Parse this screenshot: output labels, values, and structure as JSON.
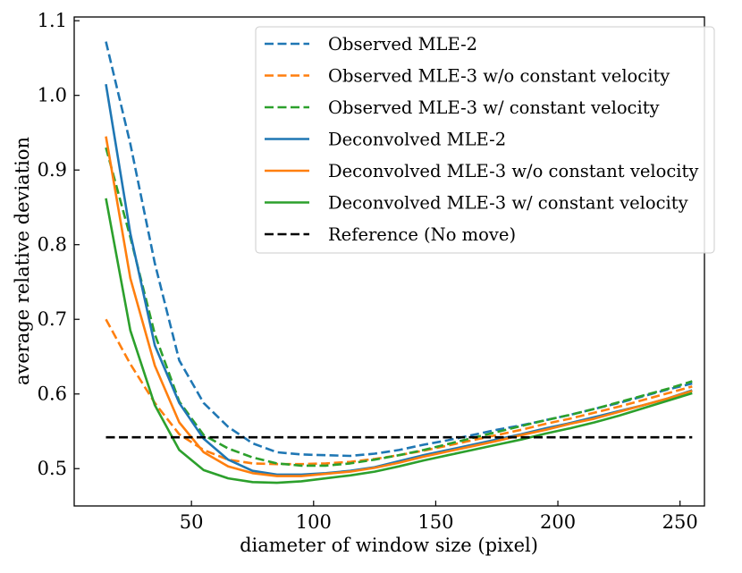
{
  "chart_data": {
    "type": "line",
    "xlabel": "diameter of window size (pixel)",
    "ylabel": "average relative deviation",
    "xlim": [
      2,
      260
    ],
    "ylim": [
      0.45,
      1.105
    ],
    "xticks": [
      50,
      100,
      150,
      200,
      250
    ],
    "xtick_labels": [
      "50",
      "100",
      "150",
      "200",
      "250"
    ],
    "yticks": [
      0.5,
      0.6,
      0.7,
      0.8,
      0.9,
      1.0,
      1.1
    ],
    "ytick_labels": [
      "0.5",
      "0.6",
      "0.7",
      "0.8",
      "0.9",
      "1.0",
      "1.1"
    ],
    "legend_position": "top-right",
    "x": [
      15,
      25,
      35,
      45,
      55,
      65,
      75,
      85,
      95,
      105,
      115,
      125,
      135,
      145,
      155,
      165,
      175,
      185,
      195,
      205,
      215,
      225,
      235,
      245,
      255
    ],
    "series": [
      {
        "name": "Observed MLE-2",
        "style": "dashed",
        "color": "#1f77b4",
        "values": [
          1.072,
          0.935,
          0.775,
          0.645,
          0.588,
          0.556,
          0.534,
          0.522,
          0.519,
          0.518,
          0.517,
          0.52,
          0.525,
          0.532,
          0.538,
          0.545,
          0.552,
          0.558,
          0.565,
          0.572,
          0.58,
          0.588,
          0.597,
          0.606,
          0.614
        ]
      },
      {
        "name": "Observed MLE-3 w/o constant velocity",
        "style": "dashed",
        "color": "#ff7f0e",
        "values": [
          0.7,
          0.64,
          0.588,
          0.546,
          0.525,
          0.512,
          0.507,
          0.506,
          0.506,
          0.507,
          0.509,
          0.513,
          0.518,
          0.524,
          0.531,
          0.538,
          0.545,
          0.552,
          0.56,
          0.567,
          0.575,
          0.583,
          0.592,
          0.601,
          0.61
        ]
      },
      {
        "name": "Observed MLE-3 w/ constant velocity",
        "style": "dashed",
        "color": "#2ca02c",
        "values": [
          0.93,
          0.81,
          0.68,
          0.59,
          0.545,
          0.527,
          0.515,
          0.507,
          0.504,
          0.504,
          0.507,
          0.512,
          0.518,
          0.525,
          0.533,
          0.541,
          0.549,
          0.557,
          0.565,
          0.572,
          0.58,
          0.589,
          0.598,
          0.607,
          0.617
        ]
      },
      {
        "name": "Deconvolved MLE-2",
        "style": "solid",
        "color": "#1f77b4",
        "values": [
          1.015,
          0.815,
          0.665,
          0.588,
          0.54,
          0.512,
          0.497,
          0.492,
          0.492,
          0.494,
          0.497,
          0.502,
          0.51,
          0.518,
          0.525,
          0.532,
          0.539,
          0.546,
          0.554,
          0.561,
          0.569,
          0.577,
          0.585,
          0.594,
          0.605
        ]
      },
      {
        "name": "Deconvolved MLE-3 w/o constant velocity",
        "style": "solid",
        "color": "#ff7f0e",
        "values": [
          0.945,
          0.755,
          0.638,
          0.562,
          0.522,
          0.503,
          0.494,
          0.49,
          0.49,
          0.493,
          0.496,
          0.501,
          0.508,
          0.516,
          0.523,
          0.53,
          0.537,
          0.545,
          0.552,
          0.56,
          0.567,
          0.576,
          0.585,
          0.594,
          0.604
        ]
      },
      {
        "name": "Deconvolved MLE-3 w/ constant velocity",
        "style": "solid",
        "color": "#2ca02c",
        "values": [
          0.862,
          0.685,
          0.585,
          0.525,
          0.498,
          0.487,
          0.482,
          0.481,
          0.483,
          0.487,
          0.491,
          0.496,
          0.503,
          0.511,
          0.518,
          0.525,
          0.532,
          0.539,
          0.547,
          0.554,
          0.562,
          0.571,
          0.581,
          0.591,
          0.601
        ]
      },
      {
        "name": "Reference (No move)",
        "style": "dashed",
        "color": "#000000",
        "values": [
          0.542,
          0.542,
          0.542,
          0.542,
          0.542,
          0.542,
          0.542,
          0.542,
          0.542,
          0.542,
          0.542,
          0.542,
          0.542,
          0.542,
          0.542,
          0.542,
          0.542,
          0.542,
          0.542,
          0.542,
          0.542,
          0.542,
          0.542,
          0.542,
          0.542
        ]
      }
    ]
  }
}
